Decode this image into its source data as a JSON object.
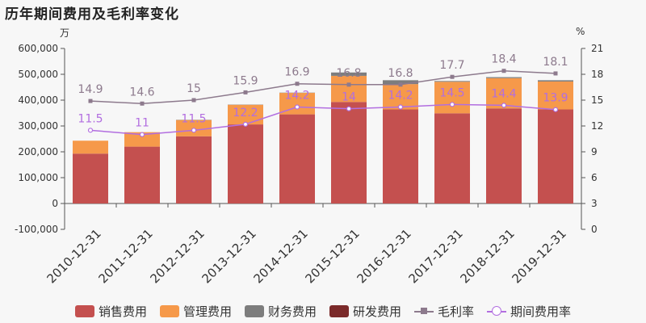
{
  "title": "历年期间费用及毛利率变化",
  "units": {
    "left": "万",
    "right": "%"
  },
  "colors": {
    "sales": "#c4504f",
    "admin": "#f6994a",
    "finance": "#7d7d7d",
    "rnd": "#7b2a2a",
    "gross": "#8d7a8d",
    "expense_rate": "#b26ee0"
  },
  "legend": [
    {
      "label": "销售费用",
      "kind": "bar",
      "color": "#c4504f"
    },
    {
      "label": "管理费用",
      "kind": "bar",
      "color": "#f6994a"
    },
    {
      "label": "财务费用",
      "kind": "bar",
      "color": "#7d7d7d"
    },
    {
      "label": "研发费用",
      "kind": "bar",
      "color": "#7b2a2a"
    },
    {
      "label": "毛利率",
      "kind": "line-square",
      "color": "#8d7a8d"
    },
    {
      "label": "期间费用率",
      "kind": "line-circle",
      "color": "#b26ee0"
    }
  ],
  "chart_data": {
    "type": "bar",
    "title": "历年期间费用及毛利率变化",
    "categories": [
      "2010-12-31",
      "2011-12-31",
      "2012-12-31",
      "2013-12-31",
      "2014-12-31",
      "2015-12-31",
      "2016-12-31",
      "2017-12-31",
      "2018-12-31",
      "2019-12-31"
    ],
    "left_axis": {
      "unit": "万",
      "min": -100000,
      "max": 600000,
      "ticks": [
        -100000,
        0,
        100000,
        200000,
        300000,
        400000,
        500000,
        600000
      ],
      "tick_labels": [
        "-100,000",
        "0",
        "100,000",
        "200,000",
        "300,000",
        "400,000",
        "500,000",
        "600,000"
      ]
    },
    "right_axis": {
      "unit": "%",
      "min": 0,
      "max": 21,
      "ticks": [
        0,
        3,
        6,
        9,
        12,
        15,
        18,
        21
      ]
    },
    "stacked_series": [
      {
        "name": "销售费用",
        "color": "#c4504f",
        "values": [
          193000,
          220000,
          260000,
          306000,
          345000,
          393000,
          364000,
          349000,
          368000,
          364000
        ]
      },
      {
        "name": "管理费用",
        "color": "#f6994a",
        "values": [
          50000,
          56000,
          63000,
          76000,
          83000,
          101000,
          98000,
          122000,
          117000,
          108000
        ]
      },
      {
        "name": "财务费用",
        "color": "#7d7d7d",
        "values": [
          0,
          0,
          1000,
          1000,
          1000,
          13000,
          15000,
          3000,
          4000,
          5000
        ]
      },
      {
        "name": "研发费用",
        "color": "#7b2a2a",
        "values": [
          0,
          0,
          0,
          0,
          0,
          0,
          0,
          0,
          0,
          0
        ]
      }
    ],
    "line_series": [
      {
        "name": "毛利率",
        "color": "#8d7a8d",
        "marker": "square",
        "values": [
          14.9,
          14.6,
          15,
          15.9,
          16.9,
          16.8,
          16.8,
          17.7,
          18.4,
          18.1
        ],
        "labels": [
          "14.9",
          "14.6",
          "15",
          "15.9",
          "16.9",
          "16.8",
          "16.8",
          "17.7",
          "18.4",
          "18.1"
        ]
      },
      {
        "name": "期间费用率",
        "color": "#b26ee0",
        "marker": "circle",
        "values": [
          11.5,
          11,
          11.5,
          12.2,
          14.2,
          14,
          14.2,
          14.5,
          14.4,
          13.9
        ],
        "labels": [
          "11.5",
          "11",
          "11.5",
          "12.2",
          "14.2",
          "14",
          "14.2",
          "14.5",
          "14.4",
          "13.9"
        ]
      }
    ],
    "grid": false,
    "legend_position": "bottom"
  }
}
